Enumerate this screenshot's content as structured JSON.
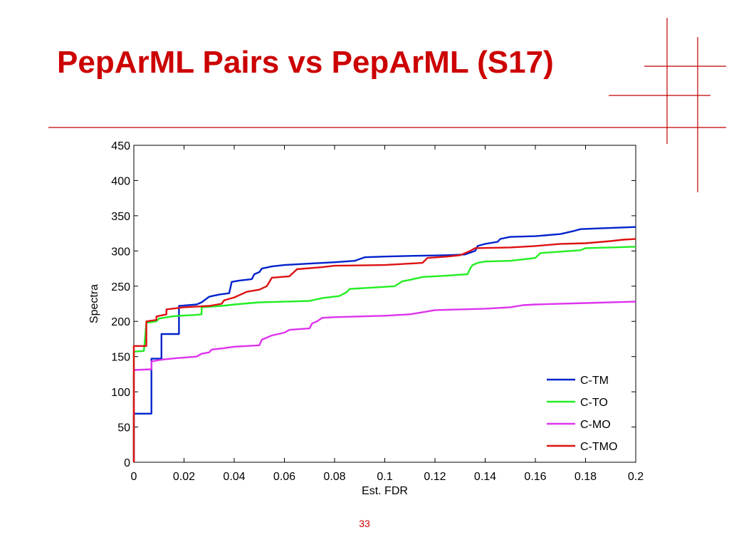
{
  "slide": {
    "title": "PepArML Pairs vs PepArML (S17)",
    "page_number": "33",
    "accent_color": "#c00000",
    "title_color": "#cc0000"
  },
  "chart_data": {
    "type": "line",
    "title": "",
    "xlabel": "Est. FDR",
    "ylabel": "Spectra",
    "xlim": [
      0,
      0.2
    ],
    "ylim": [
      0,
      450
    ],
    "xticks": [
      0,
      0.02,
      0.04,
      0.06,
      0.08,
      0.1,
      0.12,
      0.14,
      0.16,
      0.18,
      0.2
    ],
    "xtick_labels": [
      "0",
      "0.02",
      "0.04",
      "0.06",
      "0.08",
      "0.1",
      "0.12",
      "0.14",
      "0.16",
      "0.18",
      "0.2"
    ],
    "yticks": [
      0,
      50,
      100,
      150,
      200,
      250,
      300,
      350,
      400,
      450
    ],
    "ytick_labels": [
      "0",
      "50",
      "100",
      "150",
      "200",
      "250",
      "300",
      "350",
      "400",
      "450"
    ],
    "grid": false,
    "legend_position": "bottom-right",
    "series": [
      {
        "name": "C-TM",
        "color": "#0022cc",
        "points": [
          [
            0,
            0
          ],
          [
            0,
            69
          ],
          [
            0.007,
            69
          ],
          [
            0.007,
            147
          ],
          [
            0.011,
            147
          ],
          [
            0.011,
            182
          ],
          [
            0.018,
            182
          ],
          [
            0.018,
            222
          ],
          [
            0.025,
            224
          ],
          [
            0.027,
            227
          ],
          [
            0.03,
            235
          ],
          [
            0.034,
            238
          ],
          [
            0.038,
            240
          ],
          [
            0.039,
            256
          ],
          [
            0.042,
            258
          ],
          [
            0.047,
            260
          ],
          [
            0.048,
            267
          ],
          [
            0.05,
            270
          ],
          [
            0.051,
            275
          ],
          [
            0.055,
            278
          ],
          [
            0.06,
            280
          ],
          [
            0.07,
            282
          ],
          [
            0.08,
            284
          ],
          [
            0.088,
            286
          ],
          [
            0.092,
            291
          ],
          [
            0.1,
            292
          ],
          [
            0.11,
            293
          ],
          [
            0.125,
            294
          ],
          [
            0.132,
            295
          ],
          [
            0.136,
            300
          ],
          [
            0.137,
            307
          ],
          [
            0.14,
            310
          ],
          [
            0.145,
            313
          ],
          [
            0.146,
            317
          ],
          [
            0.15,
            320
          ],
          [
            0.16,
            321
          ],
          [
            0.17,
            324
          ],
          [
            0.175,
            328
          ],
          [
            0.178,
            331
          ],
          [
            0.185,
            332
          ],
          [
            0.2,
            334
          ]
        ]
      },
      {
        "name": "C-TO",
        "color": "#22ee22",
        "points": [
          [
            0,
            0
          ],
          [
            0,
            157
          ],
          [
            0.004,
            158
          ],
          [
            0.005,
            198
          ],
          [
            0.009,
            200
          ],
          [
            0.01,
            204
          ],
          [
            0.015,
            207
          ],
          [
            0.018,
            208
          ],
          [
            0.024,
            209
          ],
          [
            0.027,
            210
          ],
          [
            0.027,
            220
          ],
          [
            0.035,
            222
          ],
          [
            0.04,
            224
          ],
          [
            0.05,
            227
          ],
          [
            0.07,
            229
          ],
          [
            0.075,
            233
          ],
          [
            0.082,
            236
          ],
          [
            0.085,
            242
          ],
          [
            0.086,
            246
          ],
          [
            0.095,
            248
          ],
          [
            0.104,
            250
          ],
          [
            0.107,
            257
          ],
          [
            0.11,
            259
          ],
          [
            0.115,
            263
          ],
          [
            0.125,
            265
          ],
          [
            0.133,
            267
          ],
          [
            0.134,
            275
          ],
          [
            0.135,
            280
          ],
          [
            0.137,
            283
          ],
          [
            0.14,
            285
          ],
          [
            0.15,
            286
          ],
          [
            0.16,
            290
          ],
          [
            0.162,
            297
          ],
          [
            0.17,
            299
          ],
          [
            0.178,
            301
          ],
          [
            0.18,
            304
          ],
          [
            0.19,
            305
          ],
          [
            0.2,
            306
          ]
        ]
      },
      {
        "name": "C-MO",
        "color": "#dd33ee",
        "points": [
          [
            0,
            0
          ],
          [
            0,
            131
          ],
          [
            0.007,
            132
          ],
          [
            0.007,
            143
          ],
          [
            0.01,
            145
          ],
          [
            0.012,
            146
          ],
          [
            0.018,
            148
          ],
          [
            0.025,
            150
          ],
          [
            0.027,
            154
          ],
          [
            0.03,
            156
          ],
          [
            0.031,
            160
          ],
          [
            0.036,
            162
          ],
          [
            0.04,
            164
          ],
          [
            0.05,
            166
          ],
          [
            0.051,
            174
          ],
          [
            0.055,
            180
          ],
          [
            0.06,
            184
          ],
          [
            0.062,
            188
          ],
          [
            0.07,
            190
          ],
          [
            0.071,
            197
          ],
          [
            0.073,
            200
          ],
          [
            0.075,
            205
          ],
          [
            0.08,
            206
          ],
          [
            0.09,
            207
          ],
          [
            0.1,
            208
          ],
          [
            0.11,
            210
          ],
          [
            0.115,
            213
          ],
          [
            0.12,
            216
          ],
          [
            0.13,
            217
          ],
          [
            0.14,
            218
          ],
          [
            0.15,
            220
          ],
          [
            0.155,
            223
          ],
          [
            0.16,
            224
          ],
          [
            0.18,
            226
          ],
          [
            0.2,
            228
          ]
        ]
      },
      {
        "name": "C-TMO",
        "color": "#dd1111",
        "points": [
          [
            0,
            0
          ],
          [
            0,
            165
          ],
          [
            0.005,
            165
          ],
          [
            0.005,
            200
          ],
          [
            0.009,
            202
          ],
          [
            0.009,
            207
          ],
          [
            0.013,
            210
          ],
          [
            0.013,
            217
          ],
          [
            0.02,
            220
          ],
          [
            0.03,
            222
          ],
          [
            0.035,
            225
          ],
          [
            0.036,
            230
          ],
          [
            0.04,
            234
          ],
          [
            0.045,
            242
          ],
          [
            0.05,
            245
          ],
          [
            0.053,
            250
          ],
          [
            0.055,
            262
          ],
          [
            0.062,
            264
          ],
          [
            0.065,
            274
          ],
          [
            0.075,
            277
          ],
          [
            0.08,
            279
          ],
          [
            0.1,
            280
          ],
          [
            0.115,
            283
          ],
          [
            0.117,
            290
          ],
          [
            0.125,
            292
          ],
          [
            0.13,
            294
          ],
          [
            0.134,
            300
          ],
          [
            0.136,
            304
          ],
          [
            0.15,
            305
          ],
          [
            0.16,
            307
          ],
          [
            0.17,
            310
          ],
          [
            0.18,
            311
          ],
          [
            0.19,
            314
          ],
          [
            0.195,
            316
          ],
          [
            0.2,
            317
          ]
        ]
      }
    ]
  }
}
